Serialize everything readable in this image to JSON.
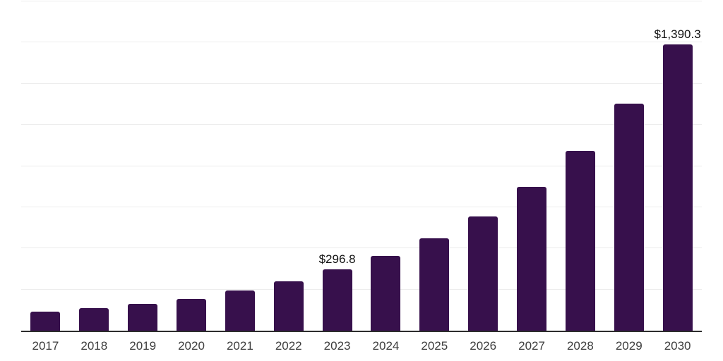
{
  "chart_data": {
    "type": "bar",
    "title": "",
    "xlabel": "",
    "ylabel": "",
    "x": [
      "2017",
      "2018",
      "2019",
      "2020",
      "2021",
      "2022",
      "2023",
      "2024",
      "2025",
      "2026",
      "2027",
      "2028",
      "2029",
      "2030"
    ],
    "values": [
      93,
      110,
      130,
      154,
      195,
      240,
      296.8,
      364,
      450,
      556,
      698,
      875,
      1102,
      1390.3
    ],
    "value_labels": {
      "2023": "$296.8",
      "2030": "$1,390.3"
    },
    "ylim": [
      0,
      1600
    ],
    "gridline_step": 200,
    "grid": "horizontal",
    "legend_position": "none",
    "colors": {
      "bar": "#37104C",
      "grid": "#ededed",
      "axis": "#2d2d2d",
      "tick_text": "#3d3d3d",
      "value_text": "#111111"
    }
  }
}
